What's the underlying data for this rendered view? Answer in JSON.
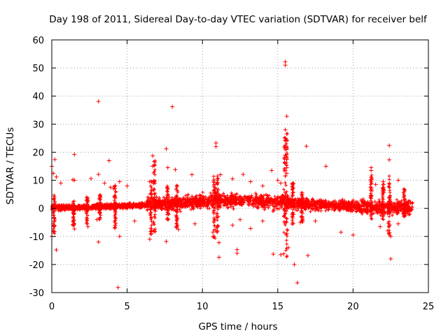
{
  "chart_data": {
    "type": "scatter",
    "title": "Day 198 of 2011, Sidereal Day-to-day VTEC variation (SDTVAR) for receiver belf",
    "xlabel": "GPS time / hours",
    "ylabel": "SDTVAR / TECUs",
    "xlim": [
      0,
      25
    ],
    "ylim": [
      -30,
      60
    ],
    "xticks": [
      0,
      5,
      10,
      15,
      20,
      25
    ],
    "yticks": [
      -30,
      -20,
      -10,
      0,
      10,
      20,
      30,
      40,
      50,
      60
    ],
    "grid": true,
    "series": [
      {
        "name": "SDTVAR",
        "color": "#ff0000",
        "marker": "+",
        "outliers": [
          [
            3.1,
            38.1
          ],
          [
            8.0,
            36.2
          ],
          [
            15.5,
            52.2
          ],
          [
            15.5,
            51.0
          ],
          [
            15.6,
            32.8
          ],
          [
            15.5,
            28.0
          ],
          [
            15.6,
            26.5
          ],
          [
            15.5,
            25.0
          ],
          [
            15.6,
            24.0
          ],
          [
            15.5,
            22.5
          ],
          [
            15.6,
            21.0
          ],
          [
            15.5,
            19.0
          ],
          [
            15.6,
            17.5
          ],
          [
            15.5,
            16.0
          ],
          [
            15.6,
            14.5
          ],
          [
            15.5,
            13.5
          ],
          [
            15.6,
            12.5
          ],
          [
            15.5,
            11.5
          ],
          [
            16.9,
            22.1
          ],
          [
            22.4,
            22.4
          ],
          [
            22.4,
            17.3
          ],
          [
            7.6,
            21.2
          ],
          [
            6.7,
            18.7
          ],
          [
            1.5,
            19.2
          ],
          [
            0.2,
            17.4
          ],
          [
            0.0,
            15.0
          ],
          [
            10.9,
            23.3
          ],
          [
            10.9,
            22.0
          ],
          [
            18.2,
            15.0
          ],
          [
            21.2,
            14.5
          ],
          [
            21.2,
            13.5
          ],
          [
            7.7,
            14.5
          ],
          [
            8.2,
            13.8
          ],
          [
            14.6,
            13.5
          ],
          [
            12.7,
            12.1
          ],
          [
            9.3,
            12.0
          ],
          [
            3.1,
            12.1
          ],
          [
            2.6,
            10.6
          ],
          [
            1.4,
            10.2
          ],
          [
            1.5,
            10.0
          ],
          [
            3.8,
            17.0
          ],
          [
            3.9,
            7.5
          ],
          [
            4.2,
            8.1
          ],
          [
            6.7,
            15.0
          ],
          [
            11.2,
            12.0
          ],
          [
            11.0,
            11.5
          ],
          [
            12.0,
            10.5
          ],
          [
            13.2,
            9.5
          ],
          [
            14.0,
            8.0
          ],
          [
            15.0,
            10.0
          ],
          [
            15.2,
            9.0
          ],
          [
            16.0,
            8.5
          ],
          [
            22.0,
            9.5
          ],
          [
            23.0,
            10.0
          ],
          [
            21.5,
            8.5
          ],
          [
            4.5,
            9.5
          ],
          [
            5.0,
            8.0
          ],
          [
            3.5,
            9.0
          ],
          [
            4.1,
            7.0
          ],
          [
            0.3,
            11.2
          ],
          [
            0.1,
            12.5
          ],
          [
            0.6,
            9.0
          ],
          [
            6.5,
            9.5
          ],
          [
            4.4,
            -28.2
          ],
          [
            16.3,
            -26.5
          ],
          [
            16.1,
            -20.0
          ],
          [
            22.5,
            -18.0
          ],
          [
            11.1,
            -17.4
          ],
          [
            14.7,
            -16.3
          ],
          [
            15.2,
            -16.5
          ],
          [
            15.4,
            -16.2
          ],
          [
            12.3,
            -16.0
          ],
          [
            12.3,
            -14.7
          ],
          [
            0.3,
            -14.8
          ],
          [
            17.0,
            -16.8
          ],
          [
            11.1,
            -12.2
          ],
          [
            7.6,
            -11.8
          ],
          [
            3.1,
            -12.0
          ],
          [
            4.5,
            -10.0
          ],
          [
            10.7,
            -10.0
          ],
          [
            10.7,
            -8.5
          ],
          [
            8.4,
            -7.5
          ],
          [
            13.2,
            -7.2
          ],
          [
            12.0,
            -6.0
          ],
          [
            4.2,
            -7.0
          ],
          [
            4.2,
            -6.0
          ],
          [
            1.4,
            -6.0
          ],
          [
            1.5,
            -7.3
          ],
          [
            2.4,
            -6.5
          ],
          [
            19.2,
            -8.5
          ],
          [
            22.5,
            -10.0
          ],
          [
            22.3,
            -8.0
          ],
          [
            15.7,
            -14.0
          ],
          [
            15.6,
            -9.0
          ],
          [
            20.0,
            -9.5
          ],
          [
            9.5,
            -5.5
          ],
          [
            0.0,
            -10.0
          ],
          [
            0.1,
            -8.0
          ],
          [
            6.5,
            -11.0
          ],
          [
            6.6,
            -9.0
          ],
          [
            21.8,
            -6.5
          ],
          [
            23.0,
            -5.5
          ],
          [
            16.5,
            -5.0
          ],
          [
            17.5,
            -4.5
          ],
          [
            14.0,
            -4.5
          ],
          [
            12.5,
            -4.0
          ],
          [
            5.5,
            -4.5
          ],
          [
            3.0,
            -4.0
          ]
        ]
      }
    ]
  }
}
